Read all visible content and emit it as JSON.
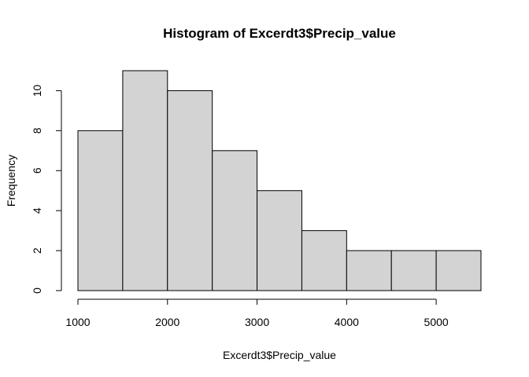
{
  "chart_data": {
    "type": "bar",
    "title": "Histogram of Excerdt3$Precip_value",
    "xlabel": "Excerdt3$Precip_value",
    "ylabel": "Frequency",
    "bins": [
      {
        "x0": 1000,
        "x1": 1500,
        "count": 8
      },
      {
        "x0": 1500,
        "x1": 2000,
        "count": 11
      },
      {
        "x0": 2000,
        "x1": 2500,
        "count": 10
      },
      {
        "x0": 2500,
        "x1": 3000,
        "count": 7
      },
      {
        "x0": 3000,
        "x1": 3500,
        "count": 5
      },
      {
        "x0": 3500,
        "x1": 4000,
        "count": 3
      },
      {
        "x0": 4000,
        "x1": 4500,
        "count": 2
      },
      {
        "x0": 4500,
        "x1": 5000,
        "count": 2
      },
      {
        "x0": 5000,
        "x1": 5500,
        "count": 2
      }
    ],
    "xlim": [
      1000,
      5500
    ],
    "ylim": [
      0,
      11
    ],
    "x_ticks": [
      1000,
      2000,
      3000,
      4000,
      5000
    ],
    "y_ticks": [
      0,
      2,
      4,
      6,
      8,
      10
    ],
    "bar_color": "#d3d3d3",
    "grid": false
  }
}
